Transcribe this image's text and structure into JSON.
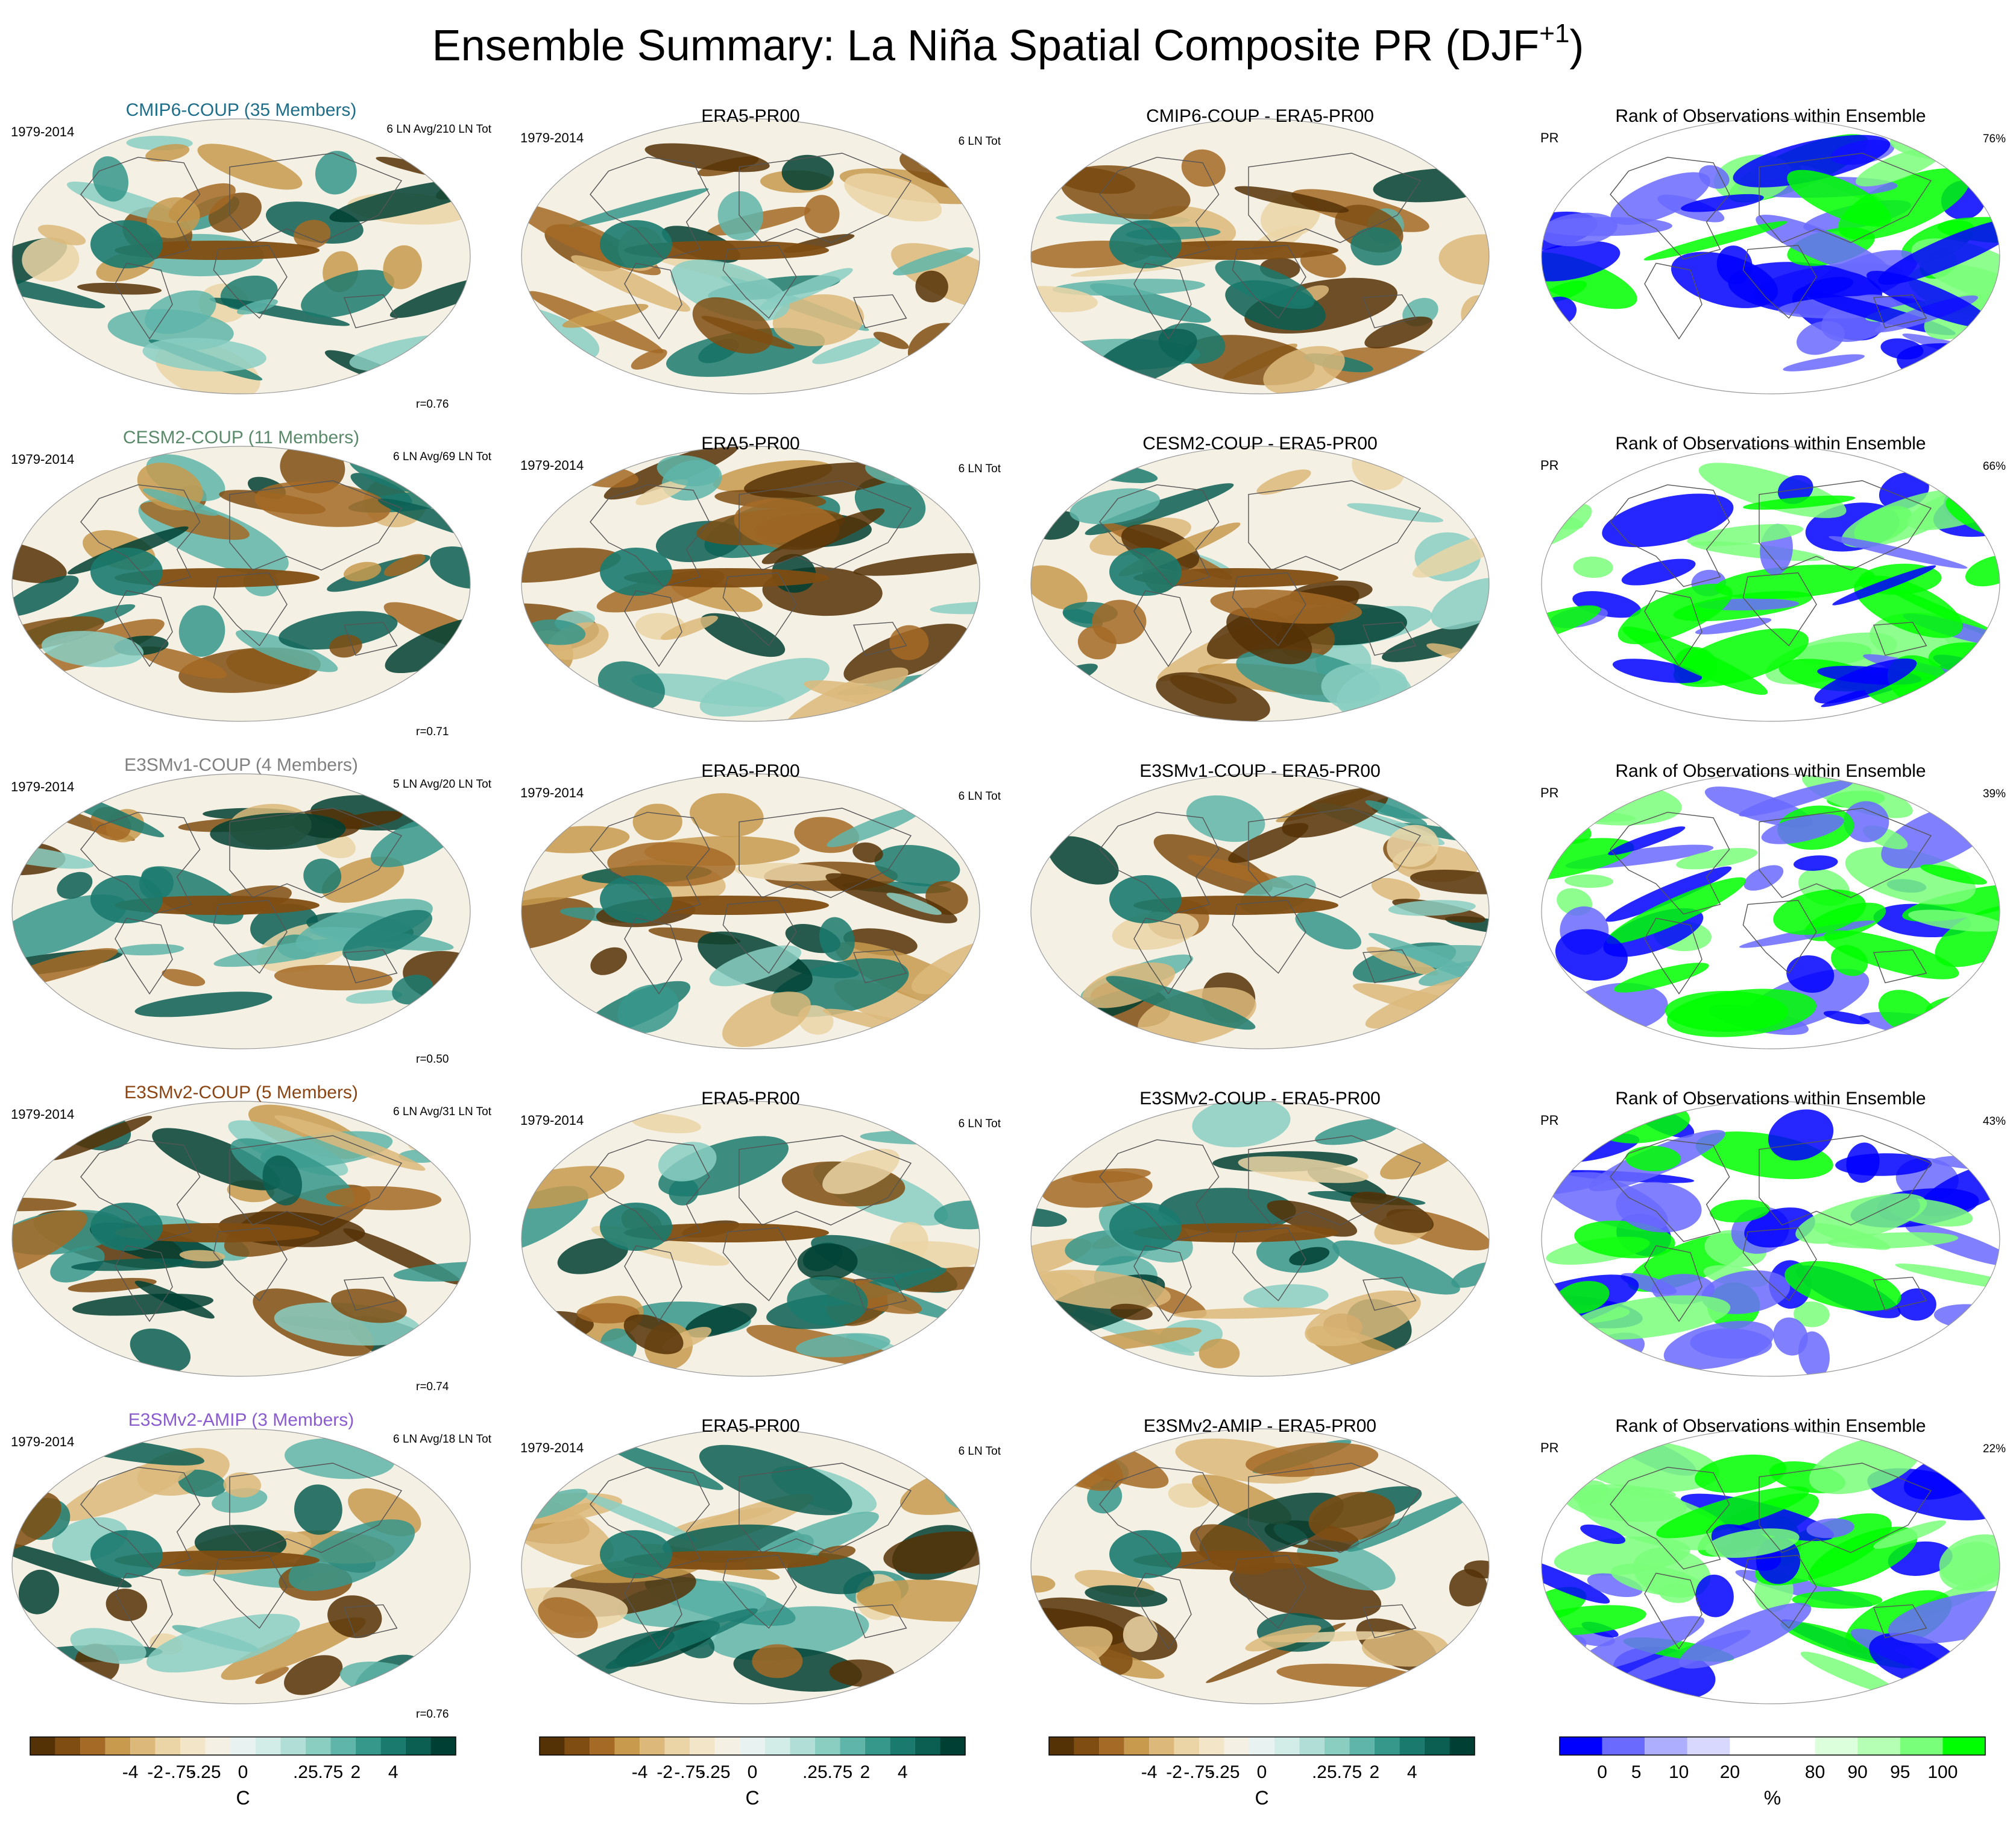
{
  "title": {
    "main": "Ensemble Summary: La Niña Spatial Composite PR (DJF",
    "sup": "+1",
    "tail": ")"
  },
  "colors": {
    "diverging": [
      "#553106",
      "#7f4d12",
      "#a56a26",
      "#c79a4e",
      "#dcb87a",
      "#ebd5a6",
      "#f3e6c8",
      "#f5f0e4",
      "#e8f3f1",
      "#d2ece8",
      "#b1dfd7",
      "#8acec2",
      "#5fb5a9",
      "#36978b",
      "#1b7a6e",
      "#0a5e52",
      "#003f33"
    ],
    "rank": [
      "#0000ff",
      "#6a6aff",
      "#aeaeff",
      "#d8d8ff",
      "#ffffff",
      "#ffffff",
      "#dcffdc",
      "#b4ffb4",
      "#7aff7a",
      "#00ff00"
    ],
    "row_title_colors": [
      "#1e6e8a",
      "#5b8a6a",
      "#808080",
      "#8b4513",
      "#8a5ccf"
    ],
    "coast": "#555555"
  },
  "rows": [
    {
      "model": "CMIP6-COUP (35 Members)",
      "period": "1979-2014",
      "model_count": "6 LN Avg/210 LN Tot",
      "corr": "r=0.76",
      "obs_title": "ERA5-PR00",
      "obs_period": "1979-2014",
      "obs_count": "6 LN Tot",
      "diff_title": "CMIP6-COUP - ERA5-PR00",
      "rank_title": "Rank of Observations within Ensemble",
      "rank_var": "PR",
      "rank_pct": "76%",
      "rank_frac": 0.76
    },
    {
      "model": "CESM2-COUP (11 Members)",
      "period": "1979-2014",
      "model_count": "6 LN Avg/69 LN Tot",
      "corr": "r=0.71",
      "obs_title": "ERA5-PR00",
      "obs_period": "1979-2014",
      "obs_count": "6 LN Tot",
      "diff_title": "CESM2-COUP - ERA5-PR00",
      "rank_title": "Rank of Observations within Ensemble",
      "rank_var": "PR",
      "rank_pct": "66%",
      "rank_frac": 0.66
    },
    {
      "model": "E3SMv1-COUP (4 Members)",
      "period": "1979-2014",
      "model_count": "5 LN Avg/20 LN Tot",
      "corr": "r=0.50",
      "obs_title": "ERA5-PR00",
      "obs_period": "1979-2014",
      "obs_count": "6 LN Tot",
      "diff_title": "E3SMv1-COUP - ERA5-PR00",
      "rank_title": "Rank of Observations within Ensemble",
      "rank_var": "PR",
      "rank_pct": "39%",
      "rank_frac": 0.39
    },
    {
      "model": "E3SMv2-COUP (5 Members)",
      "period": "1979-2014",
      "model_count": "6 LN Avg/31 LN Tot",
      "corr": "r=0.74",
      "obs_title": "ERA5-PR00",
      "obs_period": "1979-2014",
      "obs_count": "6 LN Tot",
      "diff_title": "E3SMv2-COUP - ERA5-PR00",
      "rank_title": "Rank of Observations within Ensemble",
      "rank_var": "PR",
      "rank_pct": "43%",
      "rank_frac": 0.43
    },
    {
      "model": "E3SMv2-AMIP (3 Members)",
      "period": "1979-2014",
      "model_count": "6 LN Avg/18 LN Tot",
      "corr": "r=0.76",
      "obs_title": "ERA5-PR00",
      "obs_period": "1979-2014",
      "obs_count": "6 LN Tot",
      "diff_title": "E3SMv2-AMIP - ERA5-PR00",
      "rank_title": "Rank of Observations within Ensemble",
      "rank_var": "PR",
      "rank_pct": "22%",
      "rank_frac": 0.22
    }
  ],
  "colorbars": {
    "diverging": {
      "ticks": [
        "-4",
        "-2",
        "-.75",
        "-.25",
        "0",
        ".25",
        ".75",
        "2",
        "4"
      ],
      "unit": "C"
    },
    "rank": {
      "ticks": [
        "0",
        "5",
        "10",
        "20",
        "80",
        "90",
        "95",
        "100"
      ],
      "unit": "%"
    }
  },
  "chart_data": {
    "type": "heatmap",
    "projection": "Robinson (global), 5 rows x 4 panels",
    "columns": [
      "model composite",
      "observations",
      "model minus observations",
      "rank of observations"
    ],
    "diverging_levels": [
      -4,
      -2,
      -0.75,
      -0.25,
      0,
      0.25,
      0.75,
      2,
      4
    ],
    "rank_levels": [
      0,
      5,
      10,
      20,
      80,
      90,
      95,
      100
    ],
    "row_correlations": [
      0.76,
      0.71,
      0.5,
      0.74,
      0.76
    ],
    "rank_percentages": [
      76,
      66,
      39,
      43,
      22
    ]
  }
}
